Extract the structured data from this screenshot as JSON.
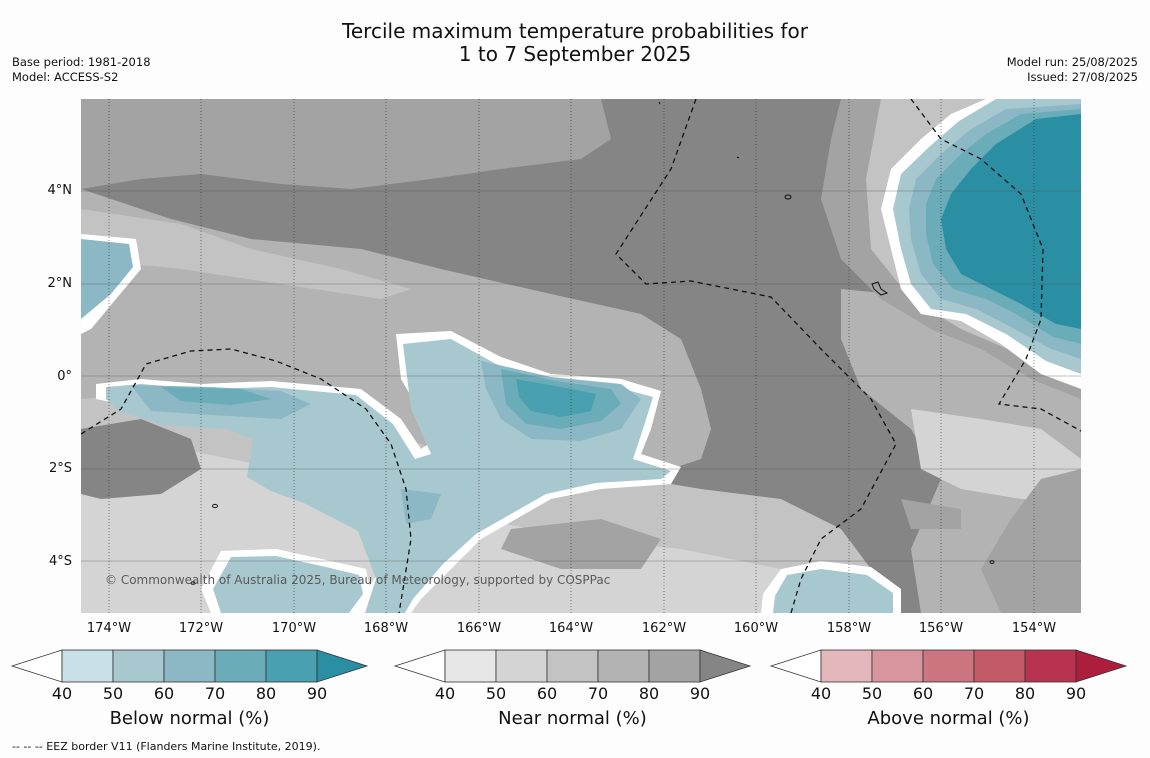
{
  "title_line1": "Tercile maximum temperature probabilities for",
  "title_line2": "1 to 7 September 2025",
  "base_period": "Base period: 1981-2018",
  "model": "Model: ACCESS-S2",
  "model_run": "Model run: 25/08/2025",
  "issued": "Issued: 27/08/2025",
  "copyright": "© Commonwealth of Australia 2025, Bureau of Meteorology, supported by COSPPac",
  "footnote": "--  --  -- EEZ border V11 (Flanders Marine Institute, 2019).",
  "lat_labels": [
    "4°N",
    "2°N",
    "0°",
    "2°S",
    "4°S"
  ],
  "lon_labels": [
    "174°W",
    "172°W",
    "170°W",
    "168°W",
    "166°W",
    "164°W",
    "162°W",
    "160°W",
    "158°W",
    "156°W",
    "154°W"
  ],
  "colorbars": [
    {
      "title": "Below normal (%)",
      "ticks": [
        "40",
        "50",
        "60",
        "70",
        "80",
        "90"
      ],
      "colors": [
        "#ffffff",
        "#c8e0e7",
        "#a8c8cf",
        "#8cb8c5",
        "#6aacb8",
        "#48a0b0",
        "#2a8fa3"
      ]
    },
    {
      "title": "Near normal (%)",
      "ticks": [
        "40",
        "50",
        "60",
        "70",
        "80",
        "90"
      ],
      "colors": [
        "#ffffff",
        "#e6e6e6",
        "#d4d4d4",
        "#c3c3c3",
        "#b3b3b3",
        "#a3a3a3",
        "#858585"
      ]
    },
    {
      "title": "Above normal (%)",
      "ticks": [
        "40",
        "50",
        "60",
        "70",
        "80",
        "90"
      ],
      "colors": [
        "#ffffff",
        "#e4b7bd",
        "#d9959e",
        "#cc7580",
        "#c35a68",
        "#b83350",
        "#ad1d3c"
      ]
    }
  ],
  "colors": {
    "below_dark": "#2a8fa3",
    "near_dark": "#858585",
    "ocean_mid": "#a3a3a3"
  }
}
